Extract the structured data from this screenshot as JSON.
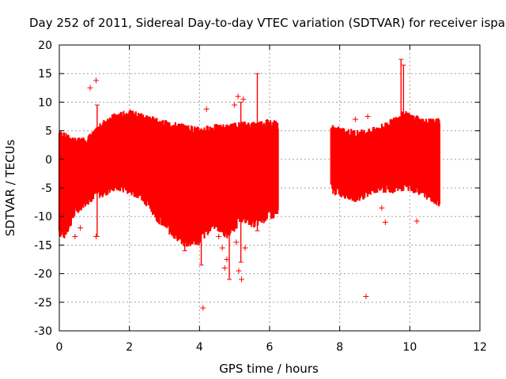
{
  "chart_data": {
    "type": "scatter",
    "title": "Day 252 of 2011, Sidereal Day-to-day VTEC variation (SDTVAR) for receiver ispa",
    "xlabel": "GPS time / hours",
    "ylabel": "SDTVAR / TECUs",
    "xlim": [
      0,
      12
    ],
    "ylim": [
      -30,
      20
    ],
    "xticks": [
      0,
      2,
      4,
      6,
      8,
      10,
      12
    ],
    "yticks": [
      -30,
      -25,
      -20,
      -15,
      -10,
      -5,
      0,
      5,
      10,
      15,
      20
    ],
    "xtick_labels": [
      "0",
      "2",
      "4",
      "6",
      "8",
      "10",
      "12"
    ],
    "ytick_labels": [
      "-30",
      "-25",
      "-20",
      "-15",
      "-10",
      "-5",
      "0",
      "5",
      "10",
      "15",
      "20"
    ],
    "grid": true,
    "marker": "+",
    "color": "#ff0000",
    "series": [
      {
        "name": "ispa",
        "envelope": [
          {
            "x": 0.0,
            "low": -12.5,
            "high": 4.5
          },
          {
            "x": 0.15,
            "low": -13.0,
            "high": 4.0
          },
          {
            "x": 0.5,
            "low": -8.5,
            "high": 3.0
          },
          {
            "x": 0.8,
            "low": -7.0,
            "high": 3.5
          },
          {
            "x": 1.0,
            "low": -6.0,
            "high": 4.5
          },
          {
            "x": 1.3,
            "low": -5.5,
            "high": 6.5
          },
          {
            "x": 1.6,
            "low": -4.5,
            "high": 7.5
          },
          {
            "x": 2.0,
            "low": -5.0,
            "high": 8.0
          },
          {
            "x": 2.4,
            "low": -6.5,
            "high": 7.5
          },
          {
            "x": 2.6,
            "low": -8.0,
            "high": 7.0
          },
          {
            "x": 2.8,
            "low": -10.0,
            "high": 6.5
          },
          {
            "x": 3.2,
            "low": -12.5,
            "high": 6.0
          },
          {
            "x": 3.6,
            "low": -14.5,
            "high": 5.5
          },
          {
            "x": 4.0,
            "low": -14.0,
            "high": 5.0
          },
          {
            "x": 4.4,
            "low": -11.0,
            "high": 5.5
          },
          {
            "x": 4.8,
            "low": -13.0,
            "high": 5.5
          },
          {
            "x": 5.2,
            "low": -10.0,
            "high": 6.0
          },
          {
            "x": 5.6,
            "low": -11.0,
            "high": 6.0
          },
          {
            "x": 6.0,
            "low": -9.5,
            "high": 6.5
          },
          {
            "x": 6.25,
            "low": -9.5,
            "high": 6.0
          },
          {
            "x": 7.75,
            "low": -5.0,
            "high": 5.5
          },
          {
            "x": 8.0,
            "low": -5.5,
            "high": 5.0
          },
          {
            "x": 8.5,
            "low": -6.5,
            "high": 4.5
          },
          {
            "x": 9.0,
            "low": -5.0,
            "high": 5.0
          },
          {
            "x": 9.5,
            "low": -5.0,
            "high": 6.5
          },
          {
            "x": 9.8,
            "low": -4.5,
            "high": 8.0
          },
          {
            "x": 10.2,
            "low": -5.0,
            "high": 7.0
          },
          {
            "x": 10.5,
            "low": -6.0,
            "high": 6.5
          },
          {
            "x": 10.85,
            "low": -7.5,
            "high": 6.5
          }
        ],
        "spikes": [
          {
            "x": 0.12,
            "low": -13.0,
            "high": 4.5
          },
          {
            "x": 1.08,
            "low": -13.5,
            "high": 9.5
          },
          {
            "x": 3.58,
            "low": -16.0,
            "high": 5.5
          },
          {
            "x": 4.05,
            "low": -18.5,
            "high": 5.0
          },
          {
            "x": 4.85,
            "low": -21.0,
            "high": 5.5
          },
          {
            "x": 5.18,
            "low": -18.0,
            "high": 10.0
          },
          {
            "x": 5.65,
            "low": -12.5,
            "high": 15.0
          },
          {
            "x": 9.75,
            "low": -4.0,
            "high": 17.5
          },
          {
            "x": 9.82,
            "low": -4.5,
            "high": 16.5
          }
        ],
        "outliers": [
          {
            "x": 0.88,
            "y": 12.5
          },
          {
            "x": 1.05,
            "y": 13.8
          },
          {
            "x": 4.2,
            "y": 8.8
          },
          {
            "x": 5.0,
            "y": 9.5
          },
          {
            "x": 5.1,
            "y": 11.0
          },
          {
            "x": 5.25,
            "y": 10.5
          },
          {
            "x": 0.45,
            "y": -13.5
          },
          {
            "x": 0.6,
            "y": -12.0
          },
          {
            "x": 1.05,
            "y": -13.5
          },
          {
            "x": 3.75,
            "y": -14.0
          },
          {
            "x": 4.55,
            "y": -13.5
          },
          {
            "x": 4.65,
            "y": -15.5
          },
          {
            "x": 4.72,
            "y": -19.0
          },
          {
            "x": 4.78,
            "y": -17.5
          },
          {
            "x": 5.05,
            "y": -14.5
          },
          {
            "x": 5.12,
            "y": -19.5
          },
          {
            "x": 5.2,
            "y": -21.0
          },
          {
            "x": 5.3,
            "y": -15.5
          },
          {
            "x": 4.1,
            "y": -26.0
          },
          {
            "x": 8.75,
            "y": -24.0
          },
          {
            "x": 9.3,
            "y": -11.0
          },
          {
            "x": 10.2,
            "y": -10.8
          },
          {
            "x": 9.2,
            "y": -8.5
          },
          {
            "x": 8.8,
            "y": 7.5
          },
          {
            "x": 8.45,
            "y": 7.0
          },
          {
            "x": 1.8,
            "y": 7.0
          }
        ]
      }
    ]
  }
}
